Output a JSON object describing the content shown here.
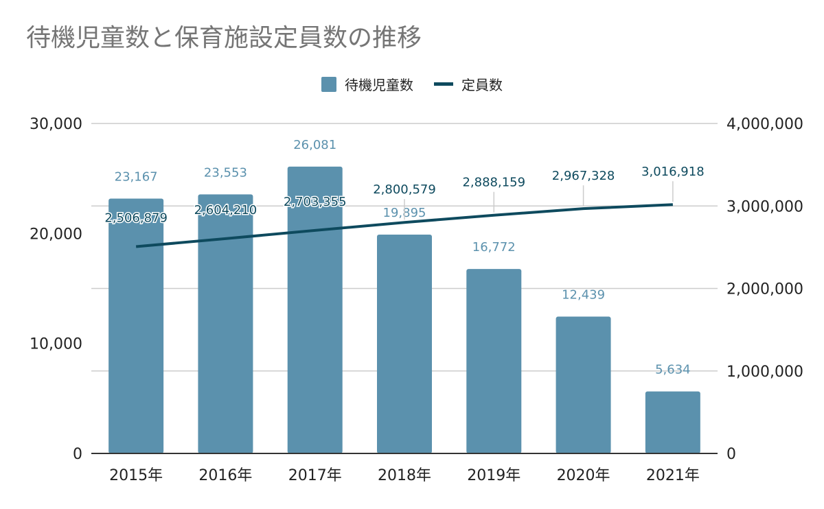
{
  "chart_data": {
    "type": "bar",
    "title": "待機児童数と保育施設定員数の推移",
    "categories": [
      "2015年",
      "2016年",
      "2017年",
      "2018年",
      "2019年",
      "2020年",
      "2021年"
    ],
    "series": [
      {
        "name": "待機児童数",
        "type": "bar",
        "axis": "left",
        "color": "#5b91ad",
        "values": [
          23167,
          23553,
          26081,
          19895,
          16772,
          12439,
          5634
        ],
        "labels": [
          "23,167",
          "23,553",
          "26,081",
          "19,895",
          "16,772",
          "12,439",
          "5,634"
        ]
      },
      {
        "name": "定員数",
        "type": "line",
        "axis": "right",
        "color": "#0e4a5e",
        "values": [
          2506879,
          2604210,
          2703355,
          2800579,
          2888159,
          2967328,
          3016918
        ],
        "labels": [
          "2,506,879",
          "2,604,210",
          "2,703,355",
          "2,800,579",
          "2,888,159",
          "2,967,328",
          "3,016,918"
        ]
      }
    ],
    "y_left": {
      "ylim": [
        0,
        30000
      ],
      "ticks": [
        "0",
        "10,000",
        "20,000",
        "30,000"
      ]
    },
    "y_right": {
      "ylim": [
        0,
        4000000
      ],
      "ticks": [
        "0",
        "1,000,000",
        "2,000,000",
        "3,000,000",
        "4,000,000"
      ]
    },
    "grid": true,
    "legend_position": "top-center",
    "colors": {
      "title": "#757575",
      "bar_label": "#5b91ad",
      "line_label": "#0e4a5e",
      "grid": "#cccccc",
      "axis_text": "#222222"
    }
  }
}
